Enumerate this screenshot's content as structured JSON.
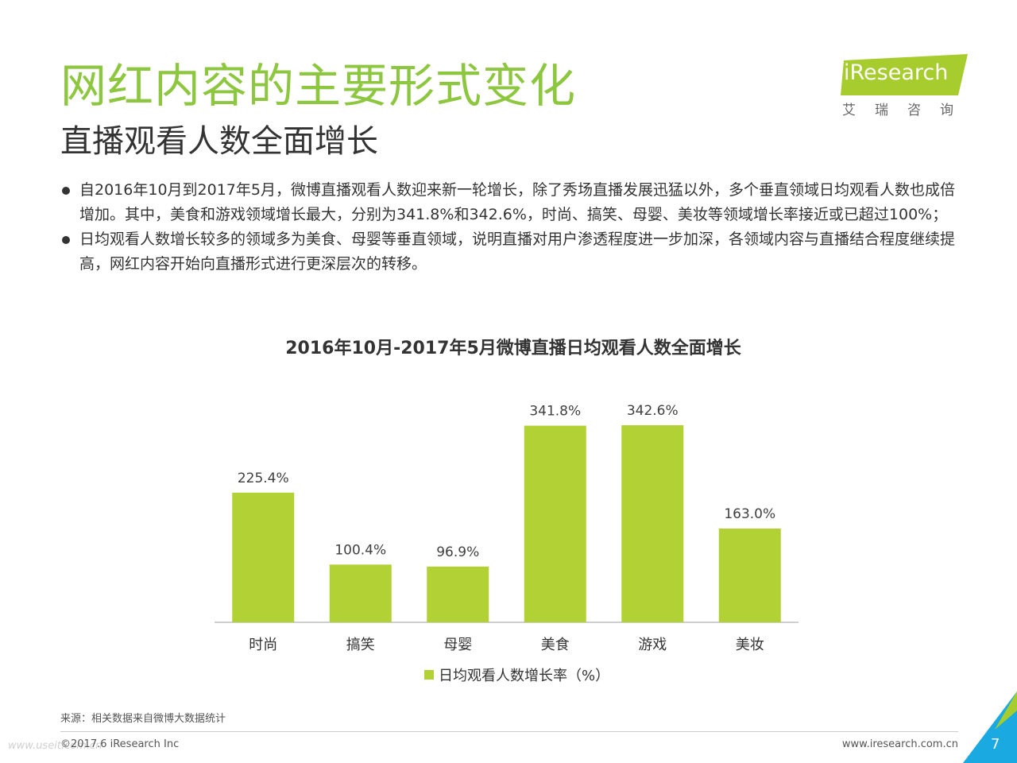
{
  "header": {
    "title": "网红内容的主要形式变化",
    "subtitle": "直播观看人数全面增长"
  },
  "logo": {
    "text": "iResearch",
    "cn": "艾瑞咨询",
    "color": "#a7cc2e"
  },
  "bullets": [
    "自2016年10月到2017年5月，微博直播观看人数迎来新一轮增长，除了秀场直播发展迅猛以外，多个垂直领域日均观看人数也成倍增加。其中，美食和游戏领域增长最大，分别为341.8%和342.6%，时尚、搞笑、母婴、美妆等领域增长率接近或已超过100%；",
    "日均观看人数增长较多的领域多为美食、母婴等垂直领域，说明直播对用户渗透程度进一步加深，各领域内容与直播结合程度继续提高，网红内容开始向直播形式进行更深层次的转移。"
  ],
  "chart_data": {
    "type": "bar",
    "title": "2016年10月-2017年5月微博直播日均观看人数全面增长",
    "categories": [
      "时尚",
      "搞笑",
      "母婴",
      "美食",
      "游戏",
      "美妆"
    ],
    "series": [
      {
        "name": "日均观看人数增长率（%）",
        "values": [
          225.4,
          100.4,
          96.9,
          341.8,
          342.6,
          163.0
        ],
        "labels": [
          "225.4%",
          "100.4%",
          "96.9%",
          "341.8%",
          "342.6%",
          "163.0%"
        ],
        "color": "#b1d135"
      }
    ],
    "ylim": [
      0,
      342.6
    ],
    "grid": false,
    "legend": "bottom"
  },
  "footer": {
    "source": "来源：相关数据来自微博大数据统计",
    "copyright": "©2017.6 iResearch Inc",
    "website": "www.iresearch.com.cn",
    "watermark": "www.useit.com.cn",
    "page_number": "7",
    "accent_color": "#1ba9e1"
  }
}
